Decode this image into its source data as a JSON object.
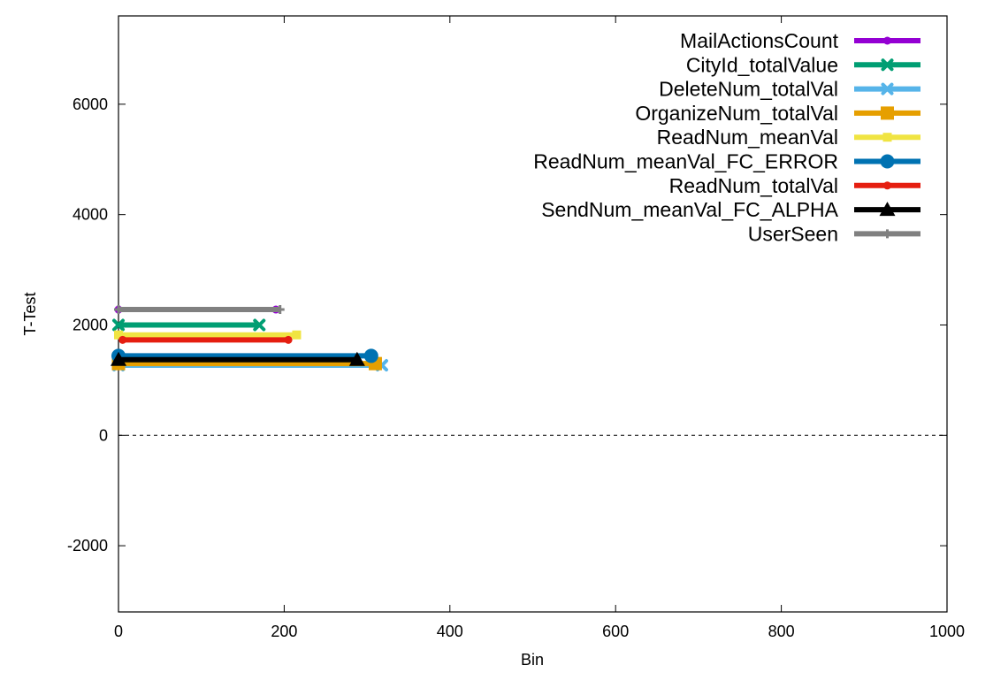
{
  "chart_data": {
    "type": "line",
    "title": "",
    "xlabel": "Bin",
    "ylabel": "T-Test",
    "xlim": [
      0,
      1000
    ],
    "ylim": [
      -3200,
      7600
    ],
    "xticks": [
      0,
      200,
      400,
      600,
      800,
      1000
    ],
    "yticks": [
      -2000,
      0,
      2000,
      4000,
      6000
    ],
    "grid": false,
    "legend": "top-right",
    "reference_line": {
      "y": 0,
      "style": "dashed"
    },
    "series": [
      {
        "name": "MailActionsCount",
        "color": "#9400d3",
        "marker": "circle-small",
        "x": [
          0,
          190
        ],
        "y": [
          2280,
          2280
        ]
      },
      {
        "name": "CityId_totalValue",
        "color": "#009e73",
        "marker": "cross",
        "x": [
          0,
          170
        ],
        "y": [
          2000,
          2000
        ]
      },
      {
        "name": "DeleteNum_totalVal",
        "color": "#56b4e9",
        "marker": "cross",
        "x": [
          0,
          318
        ],
        "y": [
          1270,
          1270
        ]
      },
      {
        "name": "OrganizeNum_totalVal",
        "color": "#e69f00",
        "marker": "square",
        "x": [
          0,
          310
        ],
        "y": [
          1300,
          1300
        ]
      },
      {
        "name": "ReadNum_meanVal",
        "color": "#f0e442",
        "marker": "square-small",
        "x": [
          0,
          215
        ],
        "y": [
          1820,
          1820
        ]
      },
      {
        "name": "ReadNum_meanVal_FC_ERROR",
        "color": "#0072b2",
        "marker": "circle",
        "x": [
          0,
          305
        ],
        "y": [
          1440,
          1440
        ]
      },
      {
        "name": "ReadNum_totalVal",
        "color": "#e51e10",
        "marker": "circle-small",
        "x": [
          5,
          205
        ],
        "y": [
          1730,
          1730
        ]
      },
      {
        "name": "SendNum_meanVal_FC_ALPHA",
        "color": "#000000",
        "marker": "triangle",
        "x": [
          0,
          288
        ],
        "y": [
          1370,
          1370
        ]
      },
      {
        "name": "UserSeen",
        "color": "#808080",
        "marker": "plus",
        "x": [
          0,
          195
        ],
        "y": [
          2280,
          2280
        ]
      }
    ]
  }
}
